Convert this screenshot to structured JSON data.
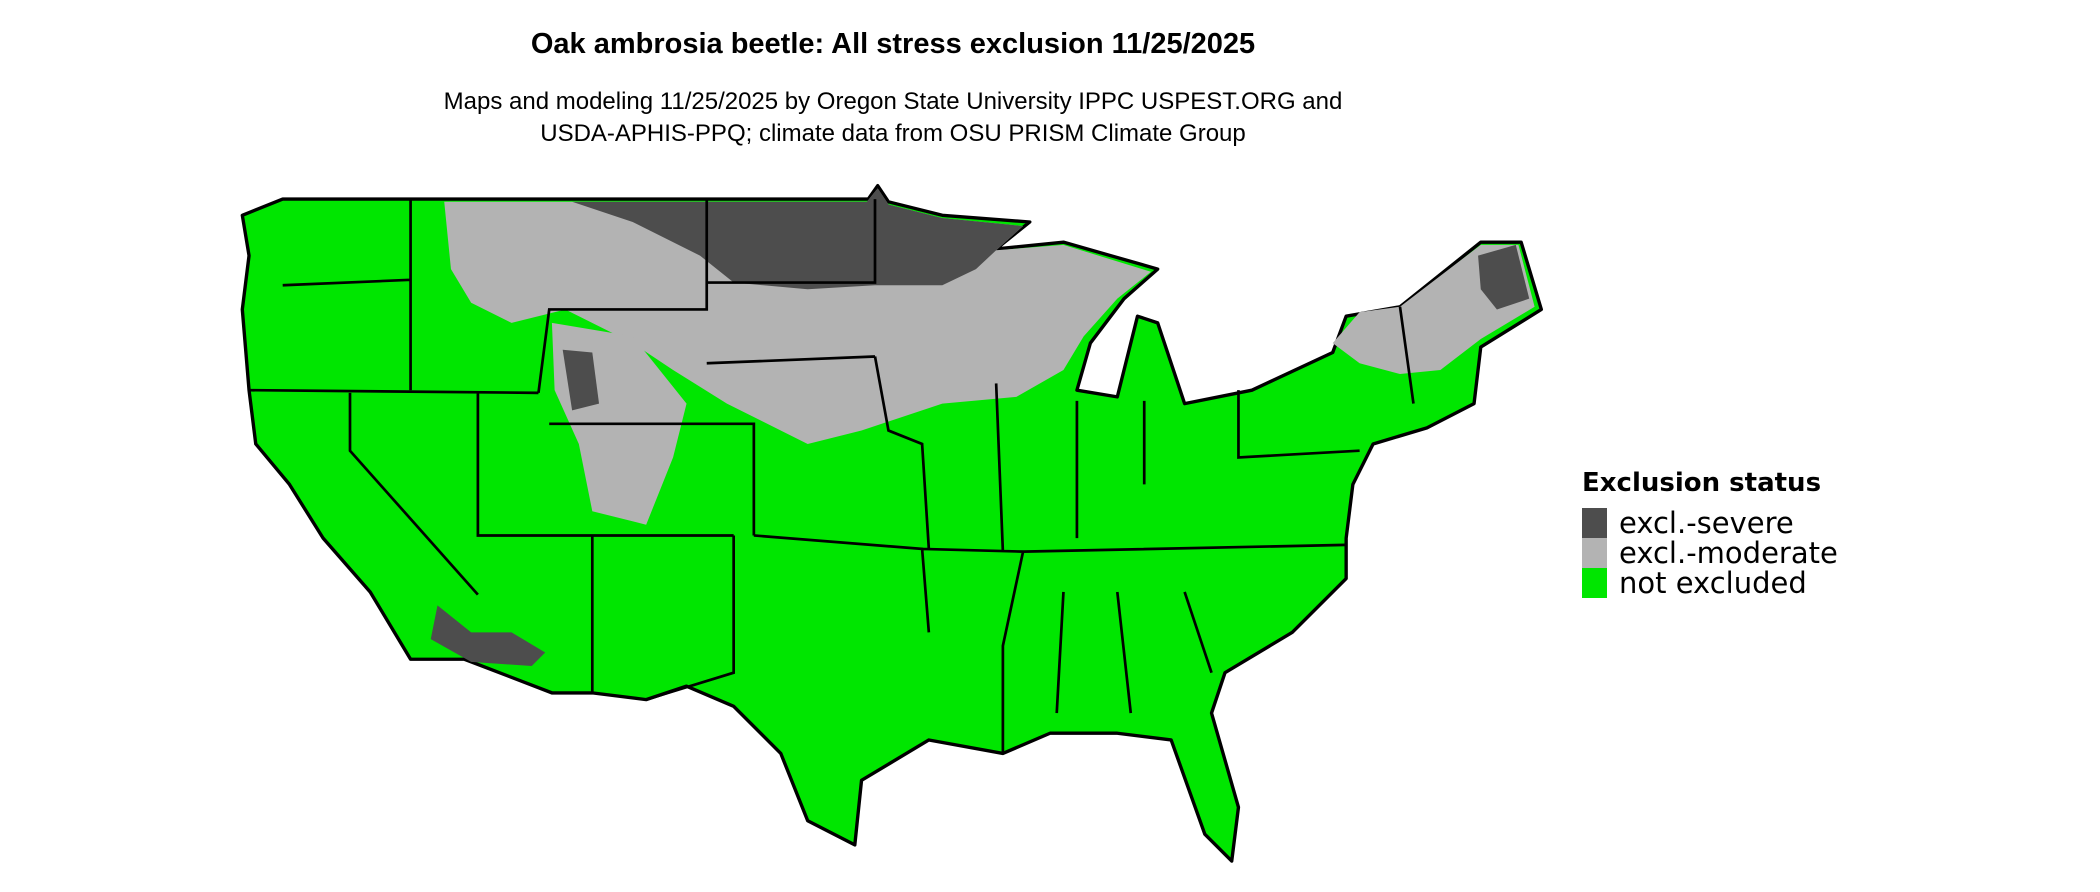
{
  "title": "Oak ambrosia beetle: All stress exclusion 11/25/2025",
  "subtitle_lines": [
    "Maps and modeling 11/25/2025 by Oregon State University IPPC USPEST.ORG and",
    "USDA-APHIS-PPQ; climate data from OSU PRISM Climate Group"
  ],
  "legend": {
    "title": "Exclusion status",
    "items": [
      {
        "label": "excl.-severe",
        "color": "#4d4d4d"
      },
      {
        "label": "excl.-moderate",
        "color": "#b3b3b3"
      },
      {
        "label": "not excluded",
        "color": "#00e600"
      }
    ]
  }
}
